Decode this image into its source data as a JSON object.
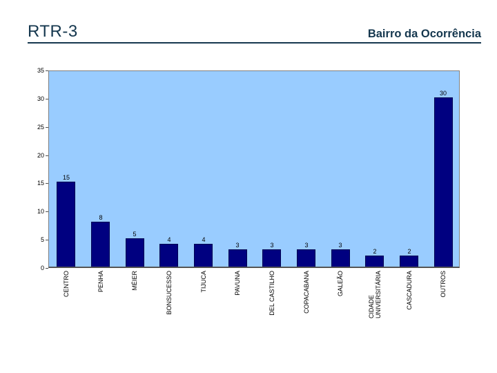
{
  "header": {
    "title": "RTR-3",
    "subtitle": "Bairro da Ocorrência",
    "accent_color": "#15374e"
  },
  "chart_data": {
    "type": "bar",
    "title": "",
    "categories": [
      "CENTRO",
      "PENHA",
      "MÉIER",
      "BONSUCESSO",
      "TIJUCA",
      "PAVUNA",
      "DEL CASTILHO",
      "COPACABANA",
      "GALEÃO",
      "CIDADE\nUNIVERSITÁRIA",
      "CASCADURA",
      "OUTROS"
    ],
    "values": [
      15,
      8,
      5,
      4,
      4,
      3,
      3,
      3,
      3,
      2,
      2,
      30
    ],
    "data_labels": [
      15,
      8,
      5,
      4,
      4,
      3,
      3,
      3,
      3,
      2,
      2,
      30
    ],
    "xlabel": "",
    "ylabel": "",
    "ylim": [
      0,
      35
    ],
    "yticks": [
      0,
      5,
      10,
      15,
      20,
      25,
      30,
      35
    ],
    "grid": false,
    "legend": "none",
    "x_labels_rotated_degrees": 90,
    "plot_bg_color": "#99ccff",
    "bar_color": "#000080",
    "bar_border_color": "#000050",
    "axis_text_color": "#000000"
  }
}
